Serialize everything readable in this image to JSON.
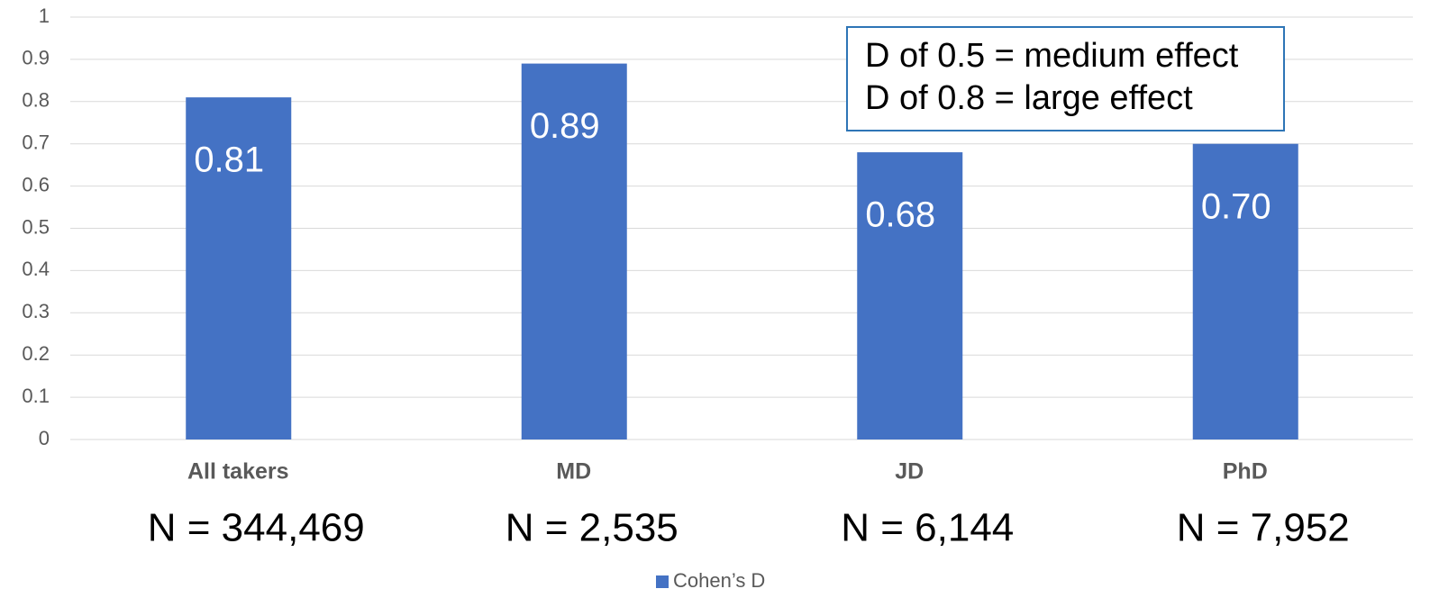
{
  "chart_data": {
    "type": "bar",
    "categories": [
      "All takers",
      "MD",
      "JD",
      "PhD"
    ],
    "series": [
      {
        "name": "Cohen’s D",
        "color": "#4472c4",
        "values": [
          0.81,
          0.89,
          0.68,
          0.7
        ],
        "value_labels": [
          "0.81",
          "0.89",
          "0.68",
          "0.70"
        ]
      }
    ],
    "ylim": [
      0,
      1
    ],
    "yticks": [
      0,
      0.1,
      0.2,
      0.3,
      0.4,
      0.5,
      0.6,
      0.7,
      0.8,
      0.9,
      1
    ],
    "grid": true,
    "category_annotations": [
      "N = 344,469",
      "N = 2,535",
      "N = 6,144",
      "N = 7,952"
    ],
    "annotations": [
      "D of 0.5 = medium effect",
      "D of 0.8 = large effect"
    ],
    "legend": "bottom"
  }
}
